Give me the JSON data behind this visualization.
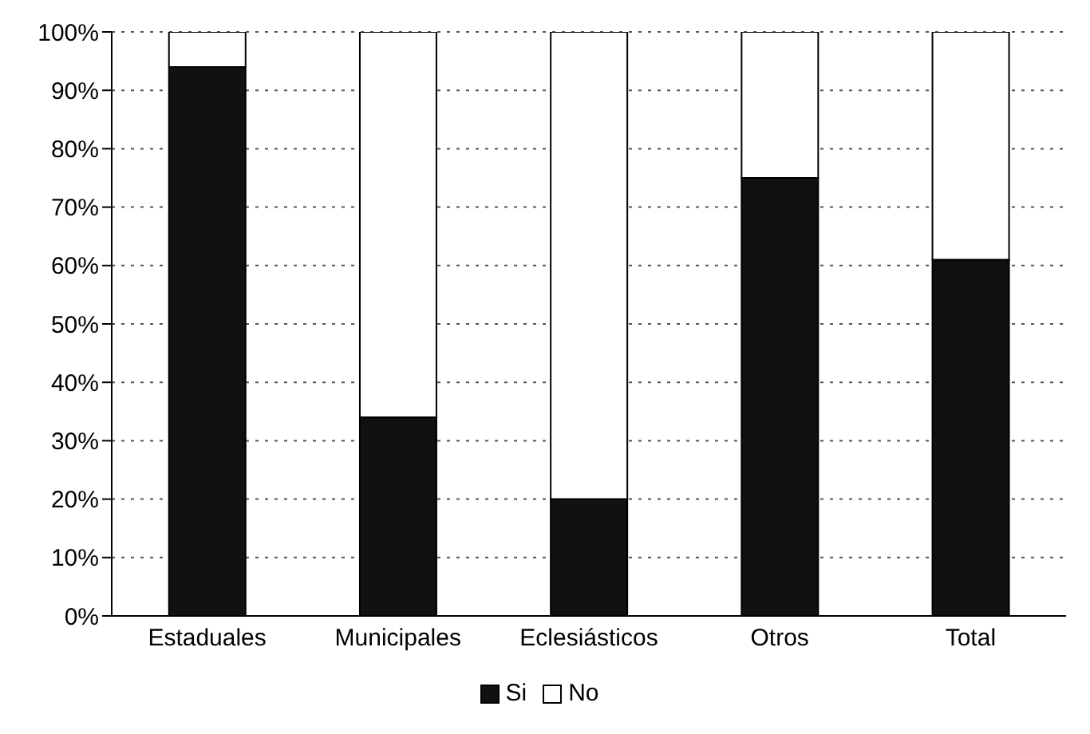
{
  "chart_data": {
    "type": "bar",
    "stacked": true,
    "categories": [
      "Estaduales",
      "Municipales",
      "Eclesiásticos",
      "Otros",
      "Total"
    ],
    "series": [
      {
        "name": "Si",
        "color": "#111111",
        "values": [
          94,
          34,
          20,
          75,
          61
        ]
      },
      {
        "name": "No",
        "color": "#ffffff",
        "values": [
          6,
          66,
          80,
          25,
          39
        ]
      }
    ],
    "ylim": [
      0,
      100
    ],
    "yticks": [
      {
        "value": 0,
        "label": "0%"
      },
      {
        "value": 10,
        "label": "10%"
      },
      {
        "value": 20,
        "label": "20%"
      },
      {
        "value": 30,
        "label": "30%"
      },
      {
        "value": 40,
        "label": "40%"
      },
      {
        "value": 50,
        "label": "50%"
      },
      {
        "value": 60,
        "label": "60%"
      },
      {
        "value": 70,
        "label": "70%"
      },
      {
        "value": 80,
        "label": "80%"
      },
      {
        "value": 90,
        "label": "90%"
      },
      {
        "value": 100,
        "label": "100%"
      }
    ],
    "grid": "y",
    "legend": "bottom"
  }
}
